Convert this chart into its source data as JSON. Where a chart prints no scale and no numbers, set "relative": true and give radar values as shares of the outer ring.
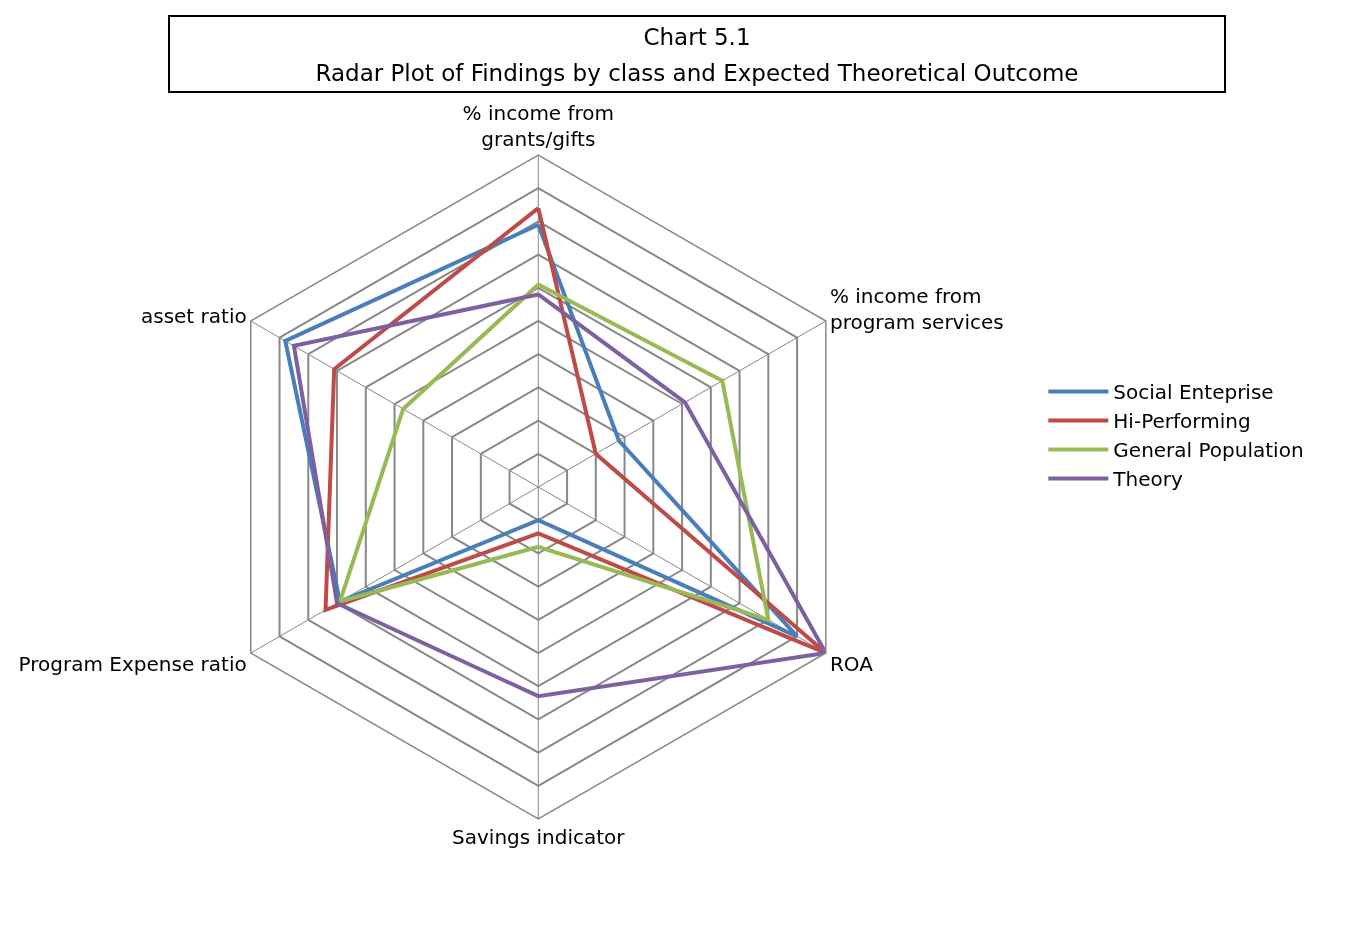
{
  "chart_data": {
    "type": "radar",
    "title": "Chart 5.1",
    "subtitle": "Radar Plot of Findings by class and Expected Theoretical Outcome",
    "categories": [
      "% income from grants/gifts",
      "% income from program services",
      "ROA",
      "Savings indicator",
      "Program Expense ratio",
      "asset ratio"
    ],
    "relative": true,
    "grid": true,
    "legend": "right",
    "marker": "none",
    "line_style": "solid",
    "series": [
      {
        "name": "Social Enteprise",
        "color": "#4a7ebb",
        "values": [
          0.79,
          0.28,
          0.9,
          0.1,
          0.69,
          0.88
        ]
      },
      {
        "name": "Hi-Performing",
        "color": "#be4b48",
        "values": [
          0.84,
          0.2,
          1,
          0.14,
          0.74,
          0.71
        ]
      },
      {
        "name": "General Population",
        "color": "#98b954",
        "values": [
          0.61,
          0.64,
          0.8,
          0.18,
          0.69,
          0.47
        ]
      },
      {
        "name": "Theory",
        "color": "#7d60a0",
        "values": [
          0.58,
          0.51,
          1,
          0.63,
          0.7,
          0.85
        ]
      }
    ]
  }
}
